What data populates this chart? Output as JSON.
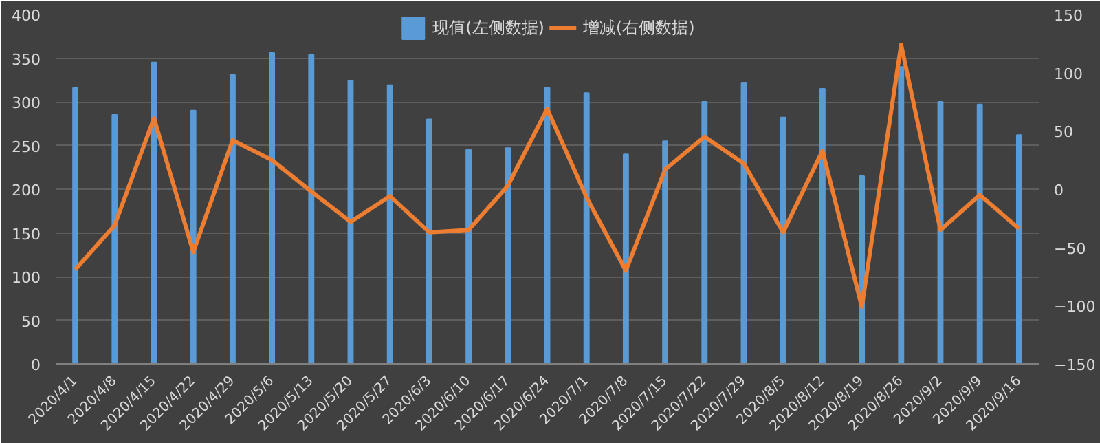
{
  "chart_data": {
    "type": "bar",
    "categories": [
      "2020/4/1",
      "2020/4/8",
      "2020/4/15",
      "2020/4/22",
      "2020/4/29",
      "2020/5/6",
      "2020/5/13",
      "2020/5/20",
      "2020/5/27",
      "2020/6/3",
      "2020/6/10",
      "2020/6/17",
      "2020/6/24",
      "2020/7/1",
      "2020/7/8",
      "2020/7/15",
      "2020/7/22",
      "2020/7/29",
      "2020/8/5",
      "2020/8/12",
      "2020/8/19",
      "2020/8/26",
      "2020/9/2",
      "2020/9/9",
      "2020/9/16"
    ],
    "series": [
      {
        "name": "现值(左侧数据)",
        "color": "#5b9bd5",
        "values": [
          316,
          285,
          345,
          290,
          331,
          356,
          354,
          324,
          319,
          280,
          245,
          247,
          316,
          310,
          240,
          255,
          300,
          322,
          282,
          315,
          215,
          340,
          300,
          297,
          262
        ]
      },
      {
        "name": "增减(右侧数据)",
        "type": "line",
        "axis": "y2",
        "color": "#ed7d31",
        "values": [
          -69,
          -31,
          61,
          -54,
          42,
          25,
          -2,
          -28,
          -6,
          -37,
          -35,
          3,
          69,
          -7,
          -70,
          17,
          45,
          22,
          -37,
          33,
          -101,
          124,
          -35,
          -5,
          -34
        ]
      }
    ],
    "ylim": [
      0,
      400
    ],
    "yticks": [
      0,
      50,
      100,
      150,
      200,
      250,
      300,
      350,
      400
    ],
    "y2lim": [
      -150,
      150
    ],
    "y2ticks": [
      -150,
      -100,
      -50,
      0,
      50,
      100,
      150
    ],
    "grid": "y",
    "legend": "top",
    "marker": "none",
    "line_style": "solid"
  }
}
